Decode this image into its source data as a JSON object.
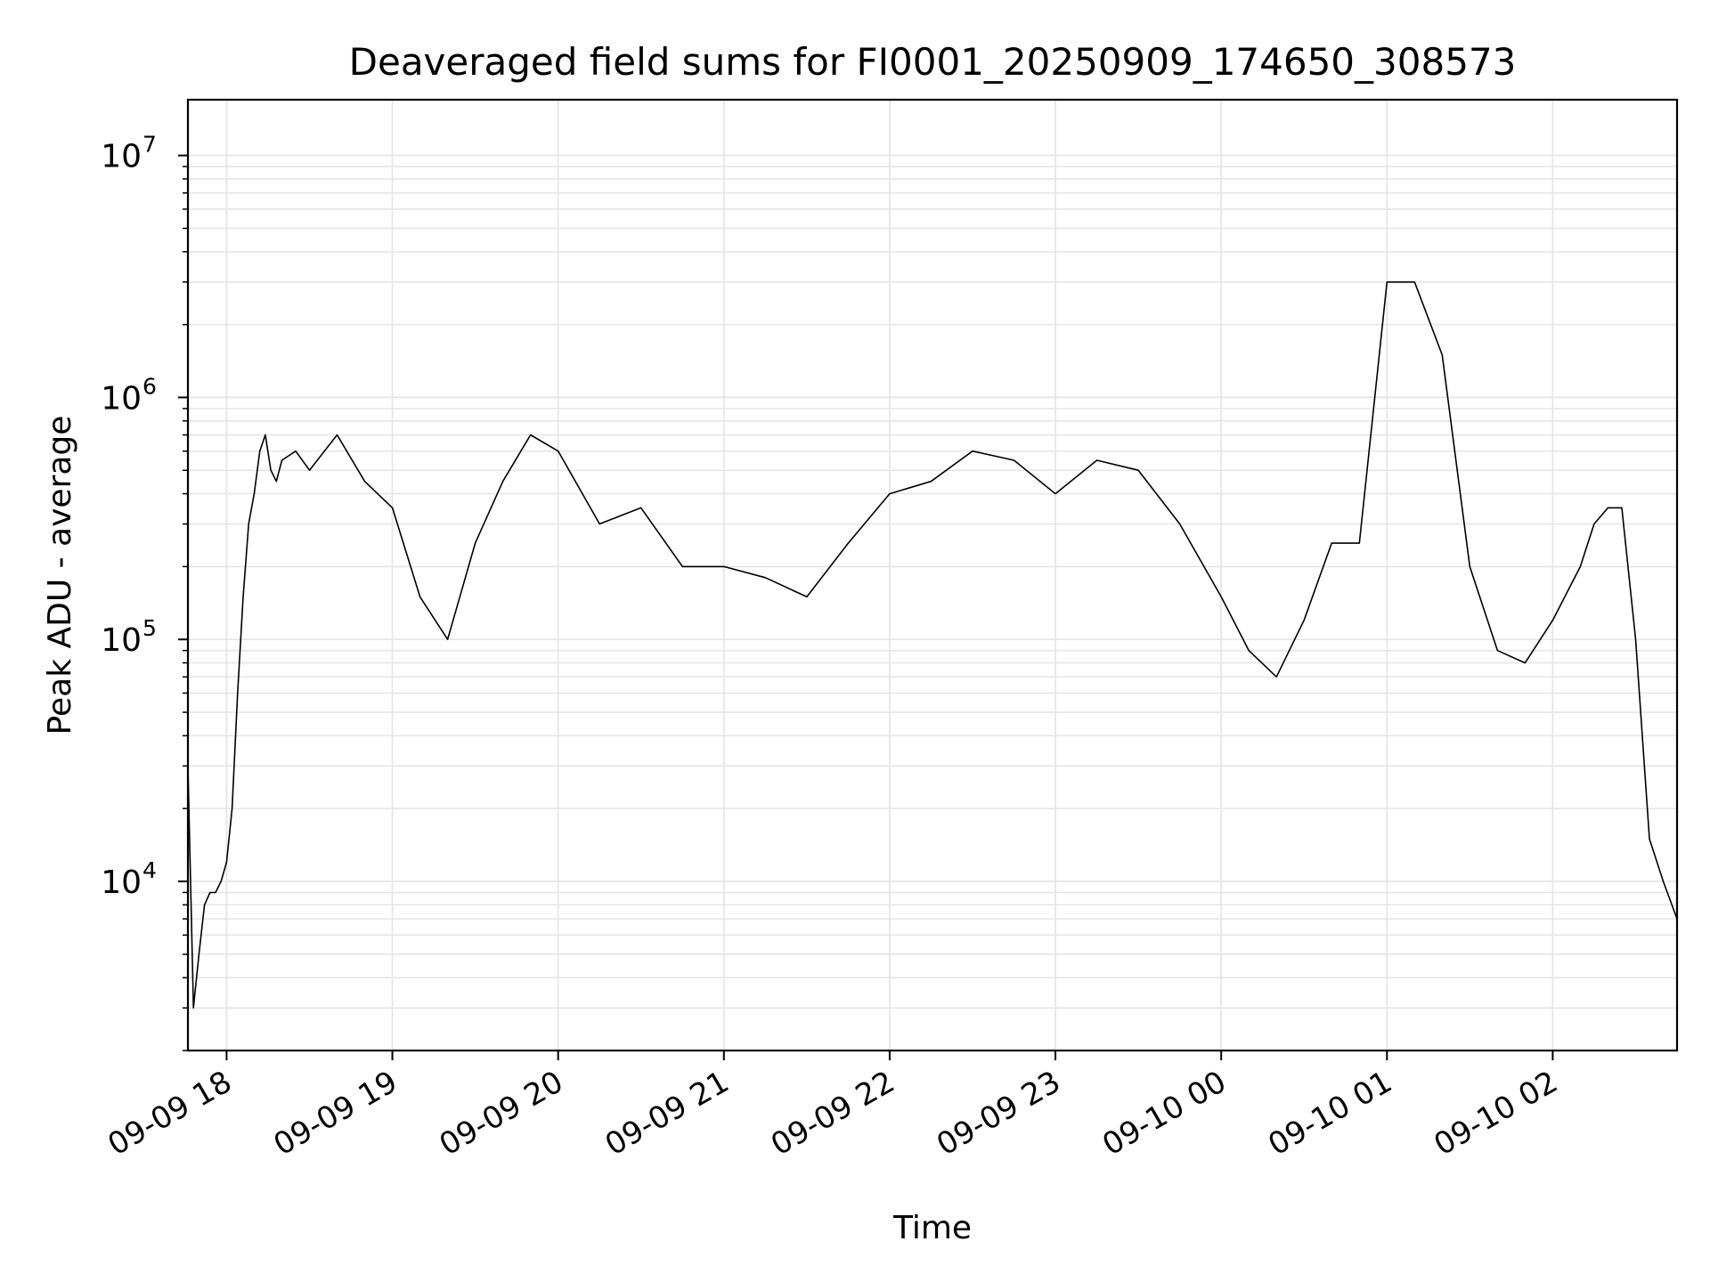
{
  "chart_data": {
    "type": "line",
    "title": "Deaveraged field sums for FI0001_20250909_174650_308573",
    "xlabel": "Time",
    "ylabel": "Peak ADU - average",
    "yscale": "log",
    "grid": true,
    "line_color": "#000000",
    "grid_color": "#e6e6e6",
    "xlim": [
      "2025-09-09 17:46",
      "2025-09-10 02:45"
    ],
    "ylim": [
      2000,
      17000000
    ],
    "xticks": [
      {
        "label": "09-09 18",
        "time": "2025-09-09 18:00"
      },
      {
        "label": "09-09 19",
        "time": "2025-09-09 19:00"
      },
      {
        "label": "09-09 20",
        "time": "2025-09-09 20:00"
      },
      {
        "label": "09-09 21",
        "time": "2025-09-09 21:00"
      },
      {
        "label": "09-09 22",
        "time": "2025-09-09 22:00"
      },
      {
        "label": "09-09 23",
        "time": "2025-09-09 23:00"
      },
      {
        "label": "09-10 00",
        "time": "2025-09-10 00:00"
      },
      {
        "label": "09-10 01",
        "time": "2025-09-10 01:00"
      },
      {
        "label": "09-10 02",
        "time": "2025-09-10 02:00"
      }
    ],
    "yticks": [
      {
        "base": "10",
        "exp": "4",
        "value": 10000
      },
      {
        "base": "10",
        "exp": "5",
        "value": 100000
      },
      {
        "base": "10",
        "exp": "6",
        "value": 1000000
      },
      {
        "base": "10",
        "exp": "7",
        "value": 10000000
      }
    ],
    "series": [
      {
        "x": [
          "2025-09-09 17:46",
          "2025-09-09 17:48",
          "2025-09-09 17:50",
          "2025-09-09 17:52",
          "2025-09-09 17:54",
          "2025-09-09 17:56",
          "2025-09-09 17:58",
          "2025-09-09 18:00",
          "2025-09-09 18:02",
          "2025-09-09 18:04",
          "2025-09-09 18:06",
          "2025-09-09 18:08",
          "2025-09-09 18:10",
          "2025-09-09 18:12",
          "2025-09-09 18:14",
          "2025-09-09 18:16",
          "2025-09-09 18:18",
          "2025-09-09 18:20",
          "2025-09-09 18:25",
          "2025-09-09 18:30",
          "2025-09-09 18:40",
          "2025-09-09 18:50",
          "2025-09-09 19:00",
          "2025-09-09 19:10",
          "2025-09-09 19:20",
          "2025-09-09 19:30",
          "2025-09-09 19:40",
          "2025-09-09 19:50",
          "2025-09-09 20:00",
          "2025-09-09 20:15",
          "2025-09-09 20:30",
          "2025-09-09 20:45",
          "2025-09-09 21:00",
          "2025-09-09 21:15",
          "2025-09-09 21:30",
          "2025-09-09 21:45",
          "2025-09-09 22:00",
          "2025-09-09 22:15",
          "2025-09-09 22:30",
          "2025-09-09 22:45",
          "2025-09-09 23:00",
          "2025-09-09 23:15",
          "2025-09-09 23:30",
          "2025-09-09 23:45",
          "2025-09-10 00:00",
          "2025-09-10 00:10",
          "2025-09-10 00:20",
          "2025-09-10 00:30",
          "2025-09-10 00:40",
          "2025-09-10 00:50",
          "2025-09-10 01:00",
          "2025-09-10 01:10",
          "2025-09-10 01:20",
          "2025-09-10 01:30",
          "2025-09-10 01:40",
          "2025-09-10 01:50",
          "2025-09-10 02:00",
          "2025-09-10 02:10",
          "2025-09-10 02:15",
          "2025-09-10 02:20",
          "2025-09-10 02:25",
          "2025-09-10 02:30",
          "2025-09-10 02:35",
          "2025-09-10 02:40",
          "2025-09-10 02:45"
        ],
        "y": [
          30000,
          3000,
          5000,
          8000,
          9000,
          9000,
          10000,
          12000,
          20000,
          60000,
          150000,
          300000,
          400000,
          600000,
          700000,
          500000,
          450000,
          550000,
          600000,
          500000,
          700000,
          450000,
          350000,
          150000,
          100000,
          250000,
          450000,
          700000,
          600000,
          300000,
          350000,
          200000,
          200000,
          180000,
          150000,
          250000,
          400000,
          450000,
          600000,
          550000,
          400000,
          550000,
          500000,
          300000,
          150000,
          90000,
          70000,
          120000,
          250000,
          250000,
          3000000,
          3000000,
          1500000,
          200000,
          90000,
          80000,
          120000,
          200000,
          300000,
          350000,
          350000,
          100000,
          15000,
          10000,
          7000
        ]
      }
    ]
  }
}
